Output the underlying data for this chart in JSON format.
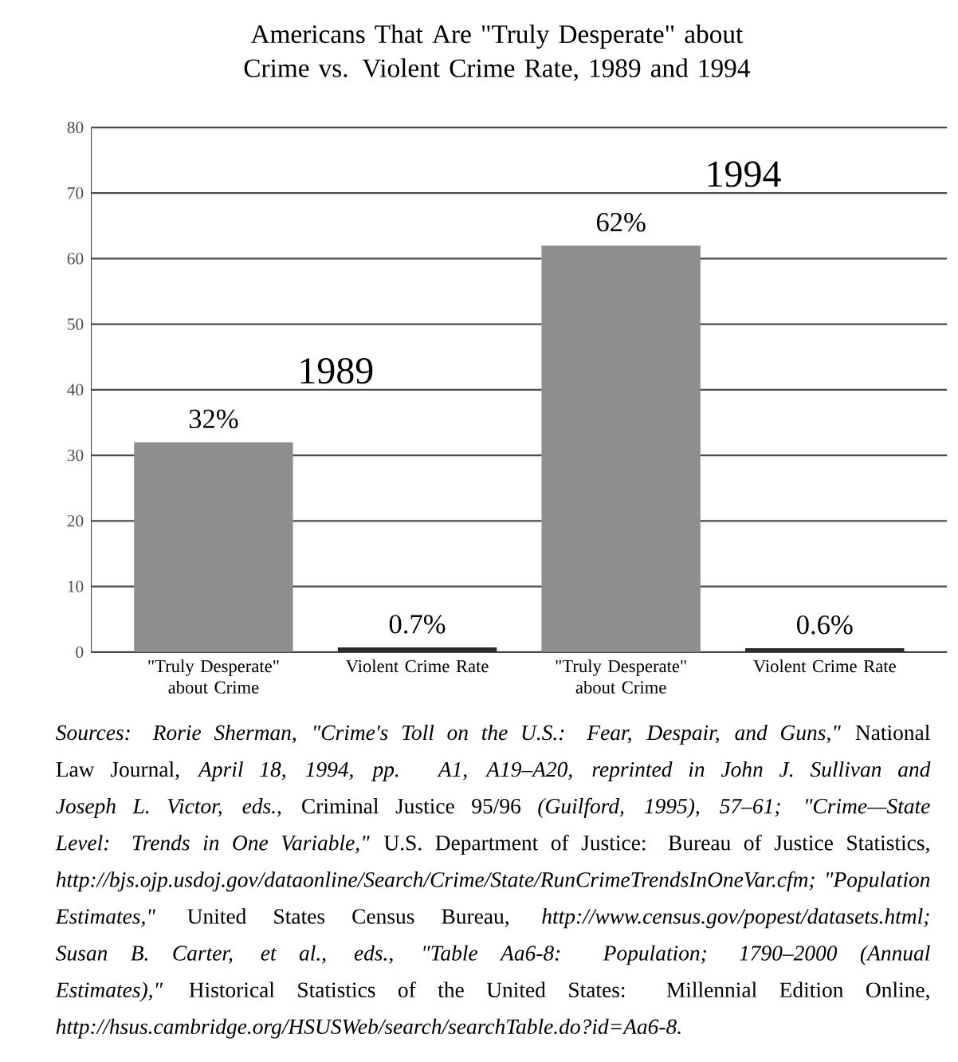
{
  "chart_data": {
    "type": "bar",
    "title": "Americans That Are \"Truly Desperate\" about Crime vs. Violent Crime Rate, 1989 and 1994",
    "categories": [
      "\"Truly Desperate\" about Crime",
      "Violent Crime Rate",
      "\"Truly Desperate\" about Crime",
      "Violent Crime Rate"
    ],
    "values": [
      32,
      0.7,
      62,
      0.6
    ],
    "value_labels": [
      "32%",
      "0.7%",
      "62%",
      "0.6%"
    ],
    "colors": [
      "#8e8e8e",
      "#2b2b2b",
      "#8e8e8e",
      "#2b2b2b"
    ],
    "ylim": [
      0,
      80
    ],
    "yticks": [
      0,
      10,
      20,
      30,
      40,
      50,
      60,
      70,
      80
    ],
    "grid": "y",
    "annotations": [
      "1989",
      "1994",
      "*Sources: Rorie Sherman, \"Crime's Toll on the U.S.: Fear, Despair, and Guns,\"* National Law Journal, *April 18, 1994, pp. A1, A19–A20, reprinted in John J. Sullivan and Joseph L. Victor, eds.,* Criminal Justice 95/96 *(Guilford, 1995), 57–61; \"Crime—State Level: Trends in One Variable,\"* U.S. Department of Justice: Bureau of Justice Statistics, *http://bjs.ojp.usdoj.gov/dataonline/Search/Crime/State/RunCrimeTrendsInOneVar.cfm; \"Population Estimates,\"* United States Census Bureau, *http://www.census.gov/popest/datasets.html; Susan B. Carter, et al., eds., \"Table Aa6-8: Population; 1790–2000 (Annual Estimates),\"* Historical Statistics of the United States: Millennial Edition Online, *http://hsus.cambridge.org/HSUSWeb/search/searchTable.do?id=Aa6-8.*"
    ]
  }
}
